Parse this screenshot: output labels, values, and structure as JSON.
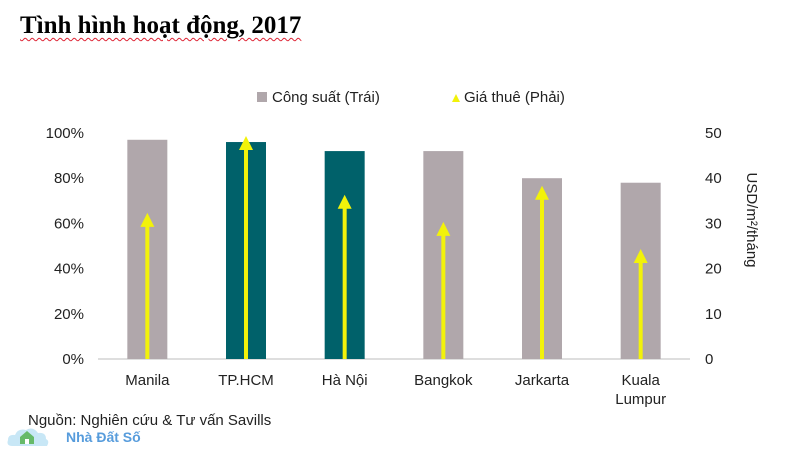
{
  "title": "Tình hình hoạt động, 2017",
  "source": "Nguồn: Nghiên cứu & Tư vấn Savills",
  "logo": {
    "text": "Nhà Đất Số",
    "icon": "house-cloud-icon"
  },
  "colors": {
    "bar_grey": "#b0a7ab",
    "bar_teal": "#00616a",
    "rent_line": "#f2f20a",
    "axis_text": "#222222",
    "axis_line": "#bdbdbd"
  },
  "chart_data": {
    "type": "bar",
    "categories": [
      "Manila",
      "TP.HCM",
      "Hà Nội",
      "Bangkok",
      "Jarkarta",
      "Kuala Lumpur"
    ],
    "category_lines": [
      [
        "Manila"
      ],
      [
        "TP.HCM"
      ],
      [
        "Hà Nội"
      ],
      [
        "Bangkok"
      ],
      [
        "Jarkarta"
      ],
      [
        "Kuala",
        "Lumpur"
      ]
    ],
    "series": [
      {
        "name": "Công suất (Trái)",
        "axis": "left",
        "values": [
          97,
          96,
          92,
          92,
          80,
          78
        ],
        "highlight": [
          false,
          true,
          true,
          false,
          false,
          false
        ]
      },
      {
        "name": "Giá thuê (Phải)",
        "axis": "right",
        "marker": "triangle",
        "values": [
          31,
          48,
          35,
          29,
          37,
          23
        ]
      }
    ],
    "y_left": {
      "ylim": [
        0,
        100
      ],
      "ticks": [
        "0%",
        "20%",
        "40%",
        "60%",
        "80%",
        "100%"
      ]
    },
    "y_right": {
      "ylim": [
        0,
        50
      ],
      "ticks": [
        "0",
        "10",
        "20",
        "30",
        "40",
        "50"
      ],
      "label": "USD/m²/tháng"
    },
    "legend_position": "top",
    "grid": false
  }
}
